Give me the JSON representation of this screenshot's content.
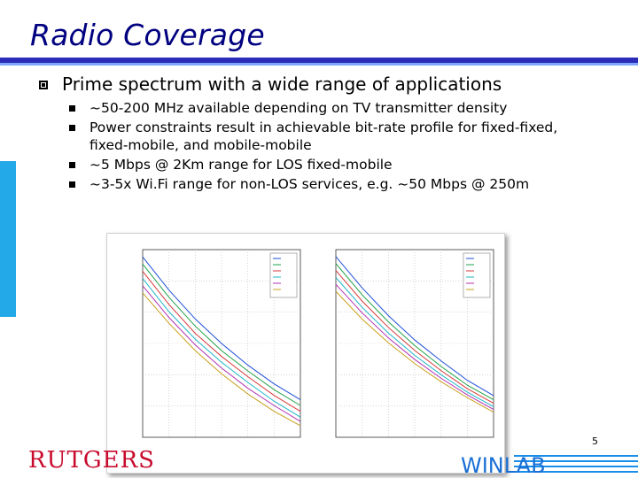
{
  "slide": {
    "title": "Radio Coverage",
    "main_bullet": "Prime spectrum with a wide range of applications",
    "sub_bullets": [
      "~50-200 MHz available depending on TV transmitter density",
      "Power constraints result in achievable bit-rate profile for fixed-fixed, fixed-mobile, and mobile-mobile",
      "~5 Mbps @ 2Km range for LOS fixed-mobile",
      "~3-5x Wi.Fi range for non-LOS services, e.g. ~50 Mbps @ 250m"
    ],
    "page_number": "5",
    "footer_logo": "RUTGERS",
    "footer_brand": "WINLAB"
  },
  "colors": {
    "title": "#000080",
    "accent_bar": "#23a8e8",
    "rutgers": "#c80a2c",
    "winlab": "#1a6fd6"
  },
  "chart_data": [
    {
      "type": "line",
      "xlim": [
        0.8,
        2.0
      ],
      "ylim": [
        0,
        13
      ],
      "series": [
        {
          "color": "#1f4fd8",
          "x": [
            0.8,
            1.0,
            1.2,
            1.4,
            1.6,
            1.8,
            2.0
          ],
          "values": [
            12.5,
            10.2,
            8.2,
            6.5,
            5.0,
            3.7,
            2.6
          ]
        },
        {
          "color": "#22a34a",
          "x": [
            0.8,
            1.0,
            1.2,
            1.4,
            1.6,
            1.8,
            2.0
          ],
          "values": [
            12.0,
            9.7,
            7.7,
            6.0,
            4.6,
            3.3,
            2.2
          ]
        },
        {
          "color": "#d63a3a",
          "x": [
            0.8,
            1.0,
            1.2,
            1.4,
            1.6,
            1.8,
            2.0
          ],
          "values": [
            11.5,
            9.2,
            7.2,
            5.6,
            4.2,
            2.9,
            1.8
          ]
        },
        {
          "color": "#20b5c8",
          "x": [
            0.8,
            1.0,
            1.2,
            1.4,
            1.6,
            1.8,
            2.0
          ],
          "values": [
            11.0,
            8.7,
            6.8,
            5.2,
            3.8,
            2.5,
            1.4
          ]
        },
        {
          "color": "#b233b2",
          "x": [
            0.8,
            1.0,
            1.2,
            1.4,
            1.6,
            1.8,
            2.0
          ],
          "values": [
            10.5,
            8.3,
            6.4,
            4.8,
            3.4,
            2.2,
            1.1
          ]
        },
        {
          "color": "#c9a01c",
          "x": [
            0.8,
            1.0,
            1.2,
            1.4,
            1.6,
            1.8,
            2.0
          ],
          "values": [
            10.0,
            7.9,
            6.0,
            4.4,
            3.0,
            1.8,
            0.8
          ]
        }
      ]
    },
    {
      "type": "line",
      "xlim": [
        0.8,
        2.0
      ],
      "ylim": [
        0,
        27
      ],
      "series": [
        {
          "color": "#1f4fd8",
          "x": [
            0.8,
            1.0,
            1.2,
            1.4,
            1.6,
            1.8,
            2.0
          ],
          "values": [
            26.0,
            21.5,
            17.5,
            14.0,
            11.0,
            8.2,
            6.0
          ]
        },
        {
          "color": "#22a34a",
          "x": [
            0.8,
            1.0,
            1.2,
            1.4,
            1.6,
            1.8,
            2.0
          ],
          "values": [
            25.0,
            20.5,
            16.6,
            13.2,
            10.2,
            7.5,
            5.4
          ]
        },
        {
          "color": "#d63a3a",
          "x": [
            0.8,
            1.0,
            1.2,
            1.4,
            1.6,
            1.8,
            2.0
          ],
          "values": [
            24.0,
            19.6,
            15.8,
            12.5,
            9.6,
            7.0,
            4.9
          ]
        },
        {
          "color": "#20b5c8",
          "x": [
            0.8,
            1.0,
            1.2,
            1.4,
            1.6,
            1.8,
            2.0
          ],
          "values": [
            23.0,
            18.7,
            15.0,
            11.8,
            9.0,
            6.5,
            4.4
          ]
        },
        {
          "color": "#b233b2",
          "x": [
            0.8,
            1.0,
            1.2,
            1.4,
            1.6,
            1.8,
            2.0
          ],
          "values": [
            22.0,
            17.9,
            14.3,
            11.2,
            8.5,
            6.1,
            4.0
          ]
        },
        {
          "color": "#c9a01c",
          "x": [
            0.8,
            1.0,
            1.2,
            1.4,
            1.6,
            1.8,
            2.0
          ],
          "values": [
            21.0,
            17.0,
            13.6,
            10.6,
            8.0,
            5.7,
            3.6
          ]
        }
      ]
    }
  ]
}
